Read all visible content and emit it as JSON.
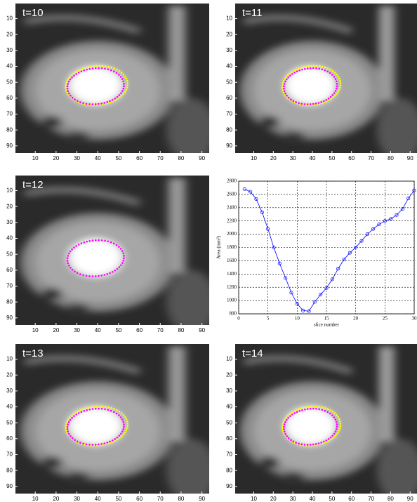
{
  "panels": [
    {
      "label": "t=10",
      "xlim": [
        0.5,
        93.5
      ],
      "ylim": [
        0.5,
        94.5
      ],
      "xticks": [
        10,
        20,
        30,
        40,
        50,
        60,
        70,
        80,
        90
      ],
      "yticks": [
        10,
        20,
        30,
        40,
        50,
        60,
        70,
        80,
        90
      ]
    },
    {
      "label": "t=11",
      "xlim": [
        0.5,
        93.5
      ],
      "ylim": [
        0.5,
        94.5
      ],
      "xticks": [
        10,
        20,
        30,
        40,
        50,
        60,
        70,
        80,
        90
      ],
      "yticks": [
        10,
        20,
        30,
        40,
        50,
        60,
        70,
        80,
        90
      ]
    },
    {
      "label": "t=12",
      "xlim": [
        0.5,
        93.5
      ],
      "ylim": [
        0.5,
        94.5
      ],
      "xticks": [
        10,
        20,
        30,
        40,
        50,
        60,
        70,
        80,
        90
      ],
      "yticks": [
        10,
        20,
        30,
        40,
        50,
        60,
        70,
        80,
        90
      ]
    },
    {
      "label": "t=13",
      "xlim": [
        0.5,
        93.5
      ],
      "ylim": [
        0.5,
        94.5
      ],
      "xticks": [
        10,
        20,
        30,
        40,
        50,
        60,
        70,
        80,
        90
      ],
      "yticks": [
        10,
        20,
        30,
        40,
        50,
        60,
        70,
        80,
        90
      ]
    },
    {
      "label": "t=14",
      "xlim": [
        0.5,
        93.5
      ],
      "ylim": [
        0.5,
        94.5
      ],
      "xticks": [
        10,
        20,
        30,
        40,
        50,
        60,
        70,
        80,
        90
      ],
      "yticks": [
        10,
        20,
        30,
        40,
        50,
        60,
        70,
        80,
        90
      ]
    }
  ],
  "chart_data": {
    "type": "line",
    "xlabel": "slice number",
    "ylabel": "Area (mm²)",
    "x": [
      1,
      2,
      3,
      4,
      5,
      6,
      7,
      8,
      9,
      10,
      11,
      12,
      13,
      14,
      15,
      16,
      17,
      18,
      19,
      20,
      21,
      22,
      23,
      24,
      25,
      26,
      27,
      28,
      29,
      30
    ],
    "series": [
      {
        "color": "#0000ff",
        "values": [
          2680,
          2640,
          2530,
          2330,
          2080,
          1800,
          1560,
          1340,
          1120,
          950,
          850,
          840,
          980,
          1090,
          1190,
          1320,
          1480,
          1620,
          1720,
          1800,
          1900,
          2000,
          2080,
          2150,
          2200,
          2230,
          2290,
          2380,
          2540,
          2660
        ]
      }
    ],
    "xlim": [
      0,
      30
    ],
    "ylim": [
      800,
      2800
    ],
    "xticks": [
      0,
      5,
      10,
      15,
      20,
      25,
      30
    ],
    "yticks": [
      800,
      1000,
      1200,
      1400,
      1600,
      1800,
      2000,
      2200,
      2400,
      2600,
      2800
    ],
    "grid": true
  }
}
